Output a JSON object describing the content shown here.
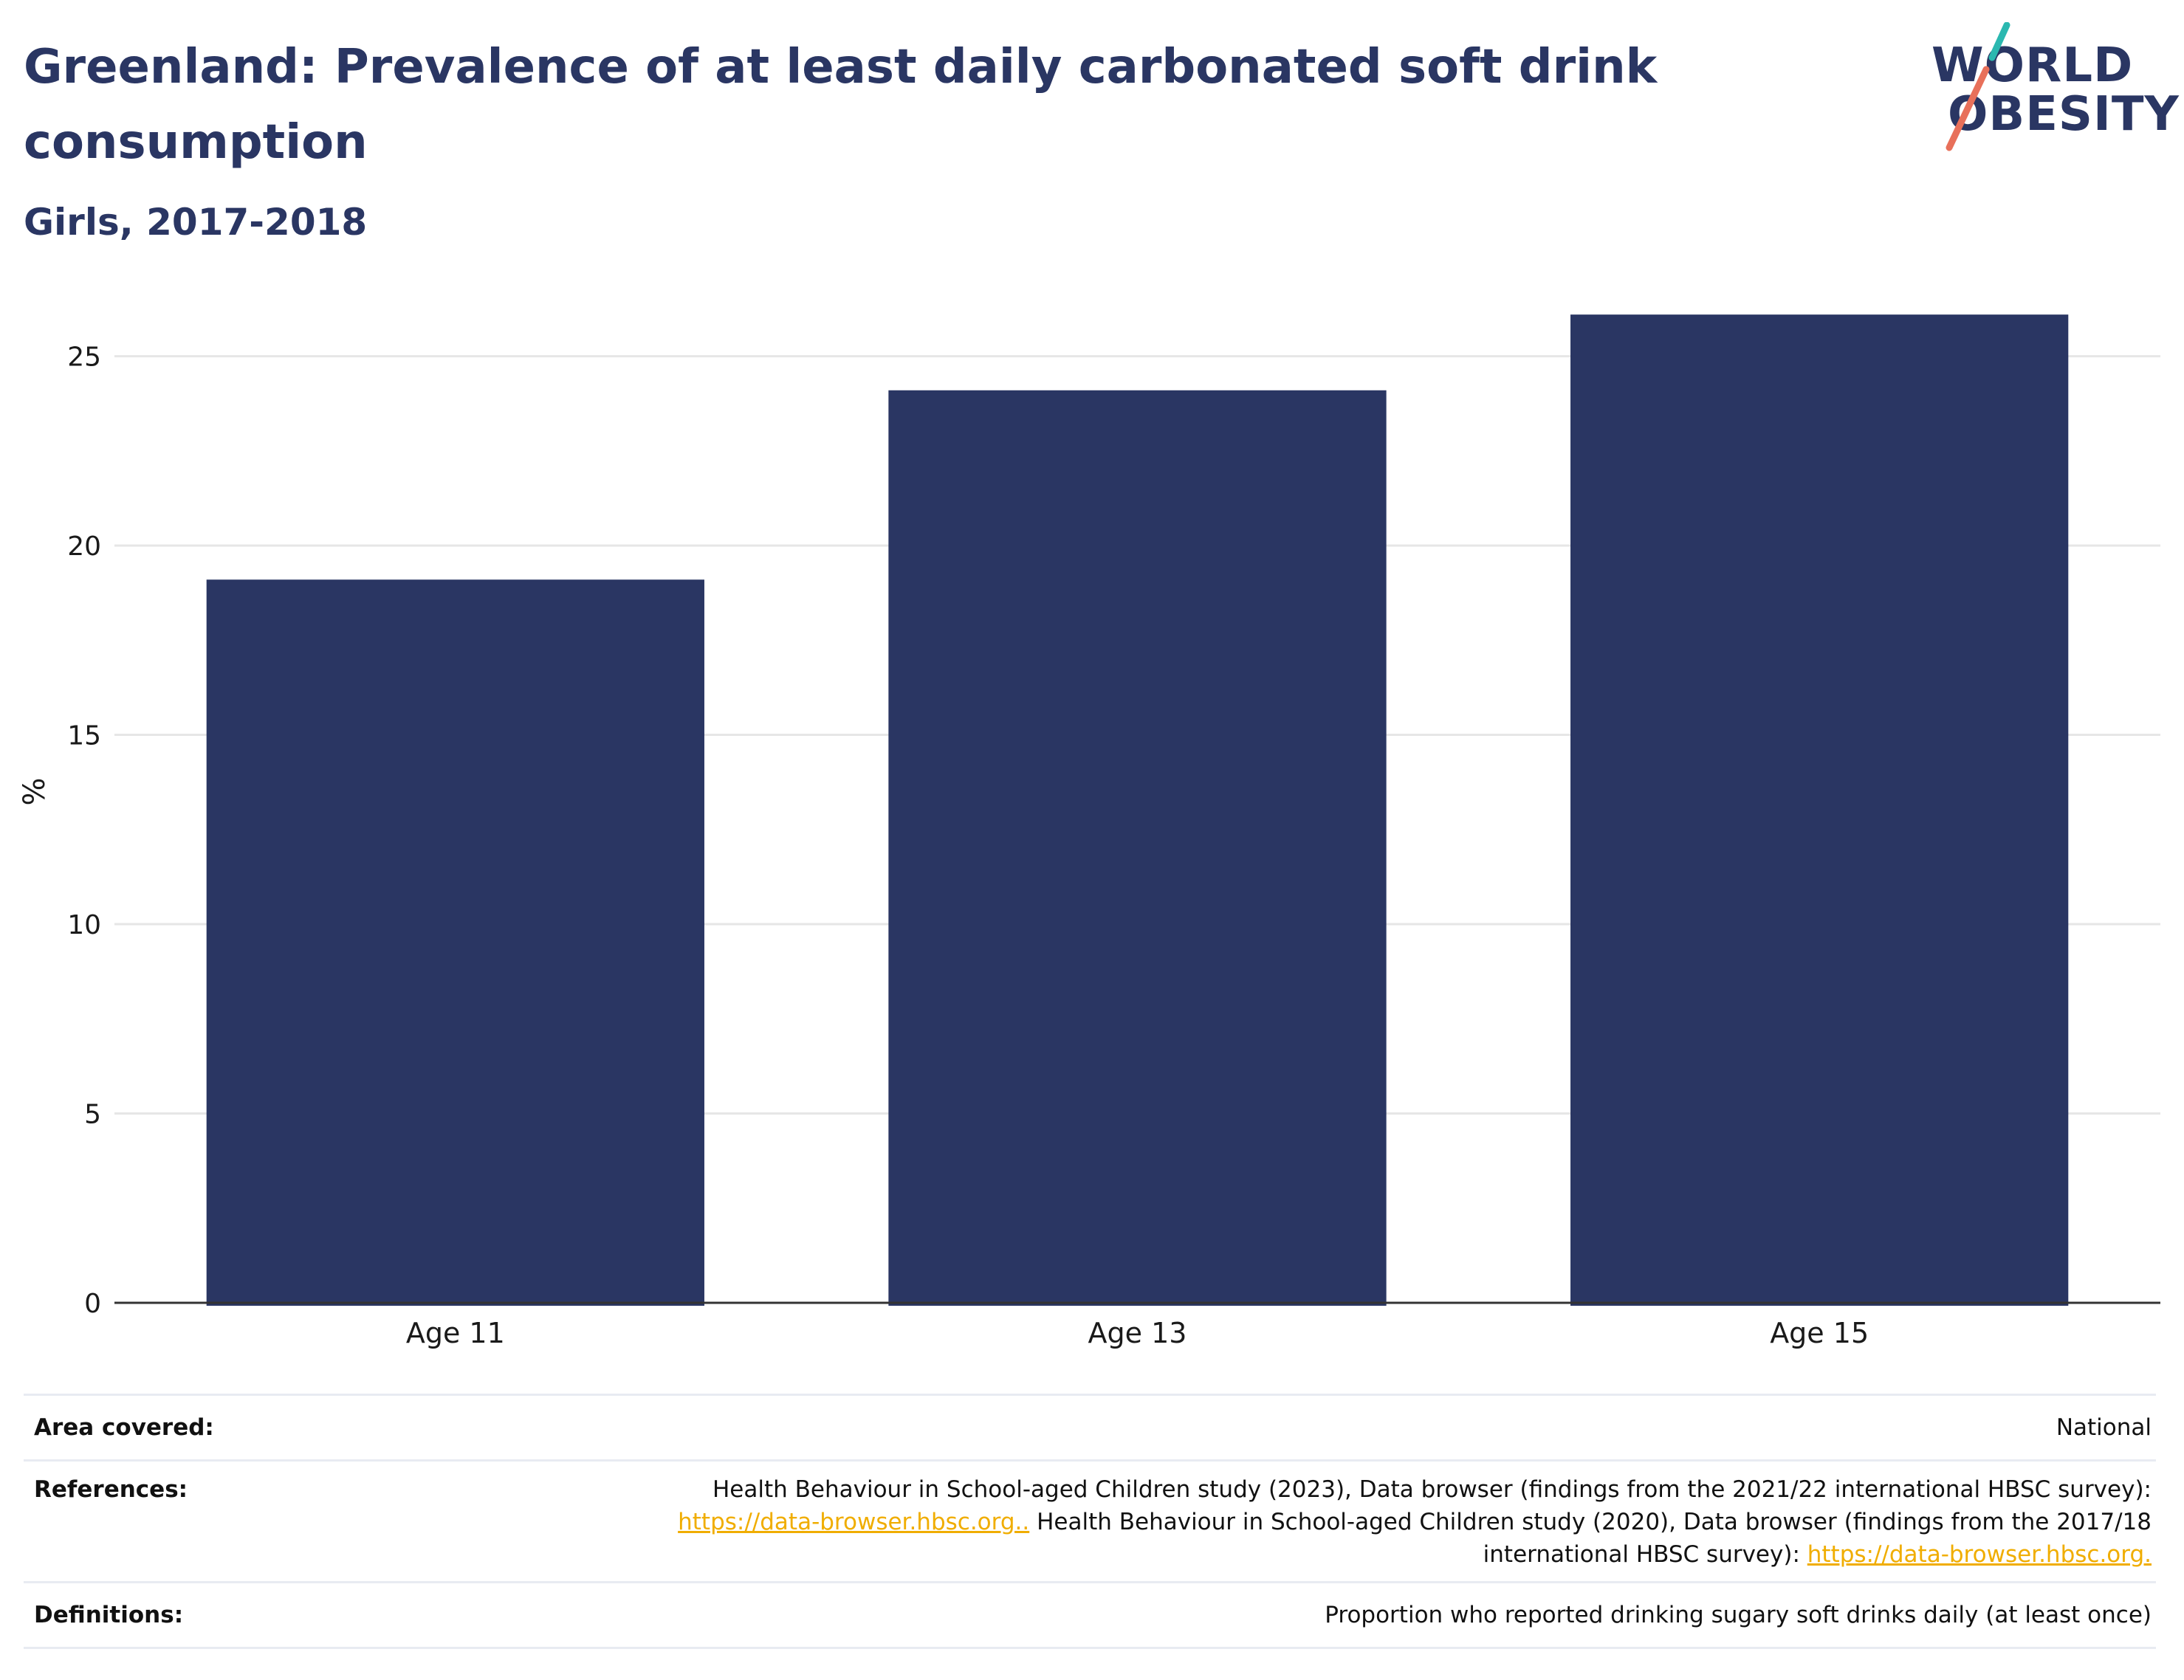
{
  "title": "Greenland: Prevalence of at least daily carbonated soft drink consumption",
  "subtitle": "Girls, 2017-2018",
  "logo": {
    "line1": "WORLD",
    "line2": "OBESITY",
    "colors": {
      "text": "#2a3663",
      "slash_top": "#2bb8b0",
      "slash_bottom": "#e8705a"
    }
  },
  "chart_data": {
    "type": "bar",
    "categories": [
      "Age 11",
      "Age 13",
      "Age 15"
    ],
    "values": [
      19.1,
      24.1,
      26.1
    ],
    "title": "",
    "xlabel": "",
    "ylabel": "%",
    "ylim": [
      0,
      27
    ],
    "yticks": [
      0,
      5,
      10,
      15,
      20,
      25
    ],
    "grid": true,
    "bar_color": "#2a3663"
  },
  "footer": {
    "area_label": "Area covered:",
    "area_value": "National",
    "references_label": "References:",
    "references_text1": "Health Behaviour in School-aged Children study (2023), Data browser (findings from the 2021/22 international HBSC survey):",
    "references_link1": "https://data-browser.hbsc.org..",
    "references_text2": " Health Behaviour in School-aged Children study (2020), Data browser (findings from the 2017/18",
    "references_text3": "international HBSC survey): ",
    "references_link2": "https://data-browser.hbsc.org.",
    "definitions_label": "Definitions:",
    "definitions_value": "Proportion who reported drinking sugary soft drinks daily (at least once)"
  }
}
